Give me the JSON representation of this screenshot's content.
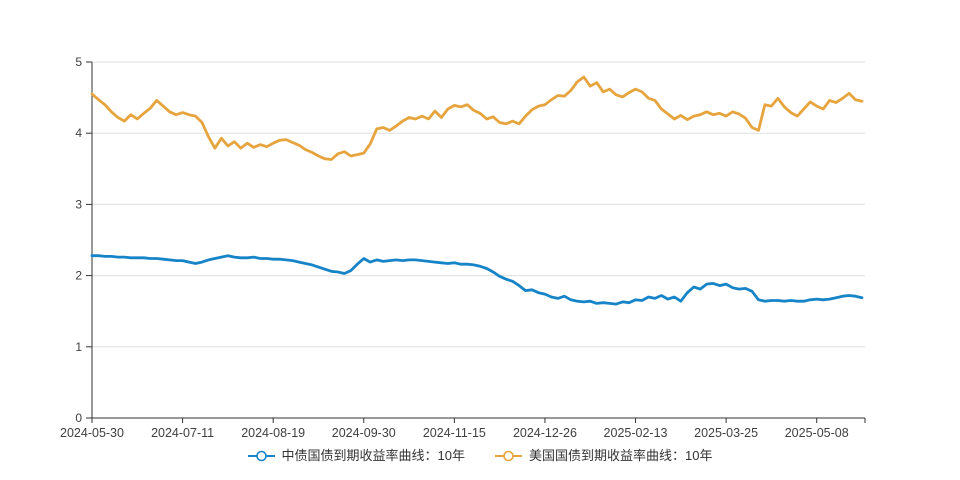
{
  "style": {
    "background": "#ffffff",
    "axis_color": "#333333",
    "grid_color": "#e0e0e0",
    "tick_label_color": "#404040",
    "legend_text_color": "#333333"
  },
  "legend": {
    "items": [
      {
        "key": "china-10y",
        "label": "中债国债到期收益率曲线：10年",
        "color": "#1784c8"
      },
      {
        "key": "us-10y",
        "label": "美国国债到期收益率曲线：10年",
        "color": "#e6a43e"
      }
    ]
  },
  "chart_data": {
    "type": "line",
    "title": "",
    "xlabel": "",
    "ylabel": "",
    "ylim": [
      0,
      5
    ],
    "y_ticks": [
      0,
      1,
      2,
      3,
      4,
      5
    ],
    "grid": "horizontal-only",
    "legend_position": "bottom-center",
    "x_labels": [
      "2024-05-30",
      "2024-07-11",
      "2024-08-19",
      "2024-09-30",
      "2024-11-15",
      "2024-12-26",
      "2025-02-13",
      "2025-03-25",
      "2025-05-08"
    ],
    "x_label_indices": [
      0,
      14,
      28,
      42,
      56,
      70,
      84,
      98,
      112
    ],
    "series": [
      {
        "key": "china-10y",
        "name": "中债国债到期收益率曲线：10年",
        "color": "#1784c8",
        "values": [
          2.28,
          2.28,
          2.27,
          2.27,
          2.26,
          2.26,
          2.25,
          2.25,
          2.25,
          2.24,
          2.24,
          2.23,
          2.22,
          2.21,
          2.21,
          2.19,
          2.17,
          2.19,
          2.22,
          2.24,
          2.26,
          2.28,
          2.26,
          2.25,
          2.25,
          2.26,
          2.24,
          2.24,
          2.23,
          2.23,
          2.22,
          2.21,
          2.19,
          2.17,
          2.15,
          2.12,
          2.09,
          2.06,
          2.05,
          2.03,
          2.07,
          2.16,
          2.24,
          2.19,
          2.22,
          2.2,
          2.21,
          2.22,
          2.21,
          2.22,
          2.22,
          2.21,
          2.2,
          2.19,
          2.18,
          2.17,
          2.18,
          2.16,
          2.16,
          2.15,
          2.13,
          2.1,
          2.05,
          1.99,
          1.95,
          1.92,
          1.86,
          1.79,
          1.8,
          1.76,
          1.74,
          1.7,
          1.68,
          1.71,
          1.66,
          1.64,
          1.63,
          1.64,
          1.61,
          1.62,
          1.61,
          1.6,
          1.63,
          1.62,
          1.66,
          1.65,
          1.7,
          1.68,
          1.72,
          1.67,
          1.7,
          1.64,
          1.76,
          1.84,
          1.81,
          1.88,
          1.89,
          1.86,
          1.88,
          1.83,
          1.81,
          1.82,
          1.78,
          1.66,
          1.64,
          1.65,
          1.65,
          1.64,
          1.65,
          1.64,
          1.64,
          1.66,
          1.67,
          1.66,
          1.67,
          1.69,
          1.71,
          1.72,
          1.71,
          1.69
        ]
      },
      {
        "key": "us-10y",
        "name": "美国国债到期收益率曲线：10年",
        "color": "#e6a43e",
        "values": [
          4.55,
          4.47,
          4.4,
          4.3,
          4.22,
          4.17,
          4.26,
          4.2,
          4.28,
          4.35,
          4.46,
          4.38,
          4.3,
          4.26,
          4.29,
          4.26,
          4.24,
          4.15,
          3.95,
          3.79,
          3.93,
          3.82,
          3.88,
          3.79,
          3.86,
          3.8,
          3.84,
          3.81,
          3.86,
          3.9,
          3.91,
          3.87,
          3.83,
          3.77,
          3.73,
          3.68,
          3.64,
          3.63,
          3.71,
          3.74,
          3.68,
          3.7,
          3.72,
          3.85,
          4.06,
          4.08,
          4.04,
          4.1,
          4.17,
          4.22,
          4.2,
          4.24,
          4.2,
          4.31,
          4.22,
          4.34,
          4.39,
          4.37,
          4.4,
          4.32,
          4.28,
          4.2,
          4.23,
          4.15,
          4.13,
          4.17,
          4.13,
          4.24,
          4.33,
          4.38,
          4.4,
          4.47,
          4.53,
          4.52,
          4.6,
          4.72,
          4.79,
          4.66,
          4.71,
          4.58,
          4.62,
          4.54,
          4.51,
          4.57,
          4.62,
          4.58,
          4.49,
          4.46,
          4.34,
          4.27,
          4.2,
          4.25,
          4.19,
          4.24,
          4.26,
          4.3,
          4.26,
          4.28,
          4.24,
          4.3,
          4.27,
          4.21,
          4.08,
          4.04,
          4.4,
          4.38,
          4.49,
          4.37,
          4.29,
          4.24,
          4.34,
          4.44,
          4.38,
          4.34,
          4.46,
          4.43,
          4.49,
          4.56,
          4.47,
          4.45
        ]
      }
    ]
  }
}
